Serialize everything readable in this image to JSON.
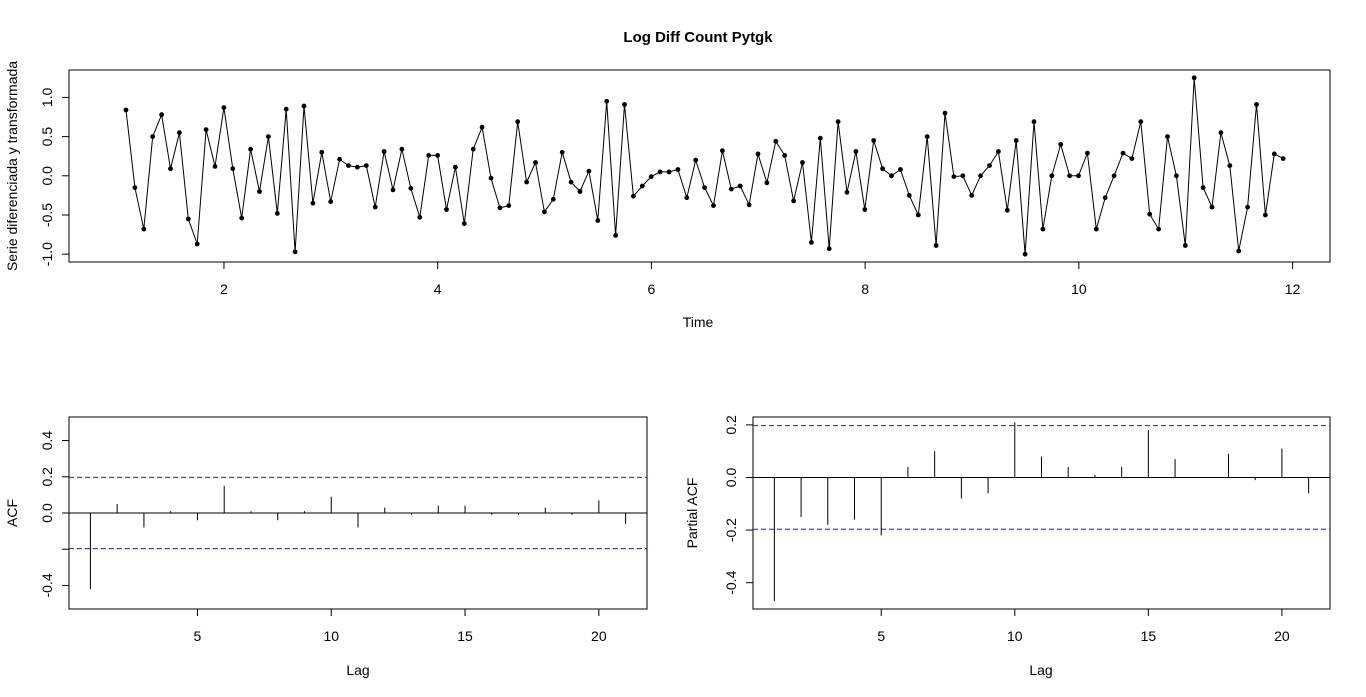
{
  "chart_data": [
    {
      "type": "line",
      "title": "Log Diff Count Pytgk",
      "xlabel": "Time",
      "ylabel": "Serie diferenciada y transformada",
      "xlim": [
        0.55,
        12.35
      ],
      "ylim": [
        -1.1,
        1.35
      ],
      "xticks": [
        2,
        4,
        6,
        8,
        10,
        12
      ],
      "yticks": [
        -1.0,
        -0.5,
        0.0,
        0.5,
        1.0
      ],
      "ytick_labels": [
        "-1.0",
        "-0.5",
        "0.0",
        "0.5",
        "1.0"
      ],
      "x_start": 1.0833,
      "x_step": 0.0833,
      "points": "p",
      "values": [
        0.84,
        -0.15,
        -0.68,
        0.5,
        0.78,
        0.09,
        0.55,
        -0.55,
        -0.87,
        0.59,
        0.12,
        0.87,
        0.09,
        -0.54,
        0.34,
        -0.2,
        0.5,
        -0.48,
        0.85,
        -0.97,
        0.89,
        -0.35,
        0.3,
        -0.33,
        0.21,
        0.13,
        0.11,
        0.13,
        -0.4,
        0.31,
        -0.18,
        0.34,
        -0.16,
        -0.53,
        0.26,
        0.26,
        -0.43,
        0.11,
        -0.61,
        0.34,
        0.62,
        -0.03,
        -0.41,
        -0.38,
        0.69,
        -0.08,
        0.17,
        -0.46,
        -0.3,
        0.3,
        -0.08,
        -0.2,
        0.06,
        -0.57,
        0.95,
        -0.76,
        0.91,
        -0.26,
        -0.13,
        -0.01,
        0.05,
        0.05,
        0.08,
        -0.28,
        0.2,
        -0.15,
        -0.38,
        0.32,
        -0.17,
        -0.13,
        -0.37,
        0.28,
        -0.09,
        0.44,
        0.26,
        -0.32,
        0.17,
        -0.85,
        0.48,
        -0.93,
        0.69,
        -0.21,
        0.31,
        -0.43,
        0.45,
        0.09,
        0.0,
        0.08,
        -0.25,
        -0.5,
        0.5,
        -0.89,
        0.8,
        -0.01,
        0.0,
        -0.25,
        0.0,
        0.13,
        0.31,
        -0.44,
        0.45,
        -1.0,
        0.69,
        -0.68,
        0.0,
        0.4,
        0.0,
        0.0,
        0.29,
        -0.68,
        -0.28,
        0.0,
        0.29,
        0.22,
        0.69,
        -0.49,
        -0.68,
        0.5,
        0.0,
        -0.89,
        1.25,
        -0.15,
        -0.4,
        0.55,
        0.13,
        -0.96,
        -0.4,
        0.91,
        -0.5,
        0.28,
        0.22
      ]
    },
    {
      "type": "bar",
      "xlabel": "Lag",
      "ylabel": "ACF",
      "xlim": [
        0.2,
        21.8
      ],
      "ylim": [
        -0.53,
        0.53
      ],
      "xticks": [
        5,
        10,
        15,
        20
      ],
      "yticks": [
        -0.4,
        -0.2,
        0.0,
        0.2,
        0.4
      ],
      "ytick_labels": [
        "-0.4",
        "0.0",
        "0.2",
        "0.4"
      ],
      "ytick_label_values": [
        -0.4,
        0.0,
        0.2,
        0.4
      ],
      "ci": 0.197,
      "lags": [
        1,
        2,
        3,
        4,
        5,
        6,
        7,
        8,
        9,
        10,
        11,
        12,
        13,
        14,
        15,
        16,
        17,
        18,
        19,
        20,
        21
      ],
      "values": [
        -0.42,
        0.05,
        -0.08,
        0.01,
        -0.04,
        0.15,
        0.01,
        -0.04,
        0.01,
        0.09,
        -0.08,
        0.03,
        -0.01,
        0.04,
        0.04,
        -0.01,
        -0.01,
        0.03,
        -0.01,
        0.07,
        -0.06
      ]
    },
    {
      "type": "bar",
      "xlabel": "Lag",
      "ylabel": "Partial ACF",
      "xlim": [
        0.2,
        21.8
      ],
      "ylim": [
        -0.5,
        0.23
      ],
      "xticks": [
        5,
        10,
        15,
        20
      ],
      "yticks": [
        -0.4,
        -0.2,
        0.0,
        0.2
      ],
      "ytick_labels": [
        "-0.4",
        "-0.2",
        "0.0",
        "0.2"
      ],
      "ytick_label_values": [
        -0.4,
        -0.2,
        0.0,
        0.2
      ],
      "ci": 0.197,
      "lags": [
        1,
        2,
        3,
        4,
        5,
        6,
        7,
        8,
        9,
        10,
        11,
        12,
        13,
        14,
        15,
        16,
        17,
        18,
        19,
        20,
        21
      ],
      "values": [
        -0.47,
        -0.15,
        -0.18,
        -0.16,
        -0.22,
        0.04,
        0.1,
        -0.08,
        -0.06,
        0.21,
        0.08,
        0.04,
        0.01,
        0.04,
        0.18,
        0.07,
        0.0,
        0.09,
        -0.01,
        0.11,
        -0.06
      ]
    }
  ]
}
